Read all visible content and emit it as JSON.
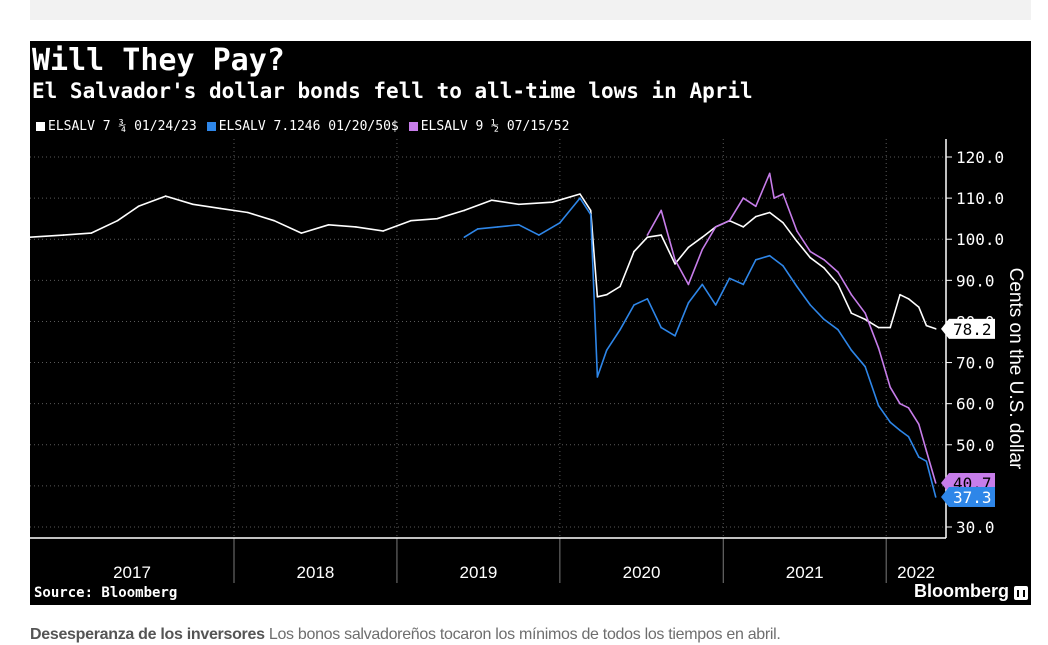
{
  "chart_data": {
    "type": "line",
    "title": "Will They Pay?",
    "subtitle": "El Salvador's dollar bonds fell to all-time lows in April",
    "ylabel": "Cents on the U.S. dollar",
    "ylim": [
      30,
      120
    ],
    "yticks": [
      "30.0",
      "40.0",
      "50.0",
      "60.0",
      "70.0",
      "80.0",
      "90.0",
      "100.0",
      "110.0",
      "120.0"
    ],
    "year_labels": [
      "2017",
      "2018",
      "2019",
      "2020",
      "2021",
      "2022"
    ],
    "x_range": [
      "2016-10-01",
      "2022-05-15"
    ],
    "x_year_boundaries": [
      "2018-01-01",
      "2019-01-01",
      "2020-01-01",
      "2021-01-01",
      "2022-01-01"
    ],
    "grid": "dotted-horizontal-and-vertical",
    "legend_position": "top-left",
    "series": [
      {
        "name": "ELSALV 7 ¾ 01/24/23",
        "color": "#ffffff",
        "last_label": "78.2",
        "label_bg": "#ffffff",
        "label_fg": "#000000",
        "x": [
          "2016-10-01",
          "2016-12-15",
          "2017-02-15",
          "2017-04-15",
          "2017-06-01",
          "2017-08-01",
          "2017-10-01",
          "2017-12-01",
          "2018-02-01",
          "2018-04-01",
          "2018-06-01",
          "2018-08-01",
          "2018-10-01",
          "2018-12-01",
          "2019-02-01",
          "2019-04-01",
          "2019-06-01",
          "2019-08-01",
          "2019-10-01",
          "2019-12-15",
          "2020-02-15",
          "2020-03-10",
          "2020-03-25",
          "2020-04-15",
          "2020-05-15",
          "2020-06-15",
          "2020-07-15",
          "2020-08-15",
          "2020-09-15",
          "2020-10-15",
          "2020-11-15",
          "2020-12-15",
          "2021-01-15",
          "2021-02-15",
          "2021-03-15",
          "2021-04-15",
          "2021-05-15",
          "2021-06-15",
          "2021-07-15",
          "2021-08-15",
          "2021-09-15",
          "2021-10-15",
          "2021-11-15",
          "2021-12-15",
          "2022-01-10",
          "2022-02-01",
          "2022-02-20",
          "2022-03-15",
          "2022-04-01",
          "2022-04-22"
        ],
        "values": [
          100.5,
          101.0,
          101.5,
          104.5,
          108.0,
          110.5,
          108.5,
          107.5,
          106.5,
          104.5,
          101.5,
          103.5,
          103.0,
          102.0,
          104.5,
          105.0,
          107.0,
          109.5,
          108.5,
          109.0,
          111.0,
          107.0,
          86.0,
          86.5,
          88.5,
          97.0,
          100.5,
          101.0,
          94.0,
          98.0,
          100.5,
          103.0,
          104.5,
          103.0,
          105.5,
          106.5,
          104.0,
          99.5,
          95.5,
          93.0,
          89.0,
          82.0,
          80.5,
          78.5,
          78.5,
          86.5,
          85.5,
          83.5,
          79.0,
          78.2
        ]
      },
      {
        "name": "ELSALV 7.1246 01/20/50$",
        "color": "#2e86e8",
        "last_label": "37.3",
        "label_bg": "#2e86e8",
        "label_fg": "#ffffff",
        "x": [
          "2019-06-01",
          "2019-07-01",
          "2019-08-15",
          "2019-10-01",
          "2019-11-15",
          "2020-01-01",
          "2020-02-15",
          "2020-03-10",
          "2020-03-25",
          "2020-04-15",
          "2020-05-15",
          "2020-06-15",
          "2020-07-15",
          "2020-08-15",
          "2020-09-15",
          "2020-10-15",
          "2020-11-15",
          "2020-12-15",
          "2021-01-15",
          "2021-02-15",
          "2021-03-15",
          "2021-04-15",
          "2021-05-15",
          "2021-06-15",
          "2021-07-15",
          "2021-08-15",
          "2021-09-15",
          "2021-10-15",
          "2021-11-15",
          "2021-12-15",
          "2022-01-10",
          "2022-02-01",
          "2022-02-20",
          "2022-03-15",
          "2022-04-01",
          "2022-04-22"
        ],
        "values": [
          100.5,
          102.5,
          103.0,
          103.5,
          101.0,
          104.0,
          110.0,
          106.0,
          66.5,
          73.0,
          78.0,
          84.0,
          85.5,
          78.5,
          76.5,
          84.5,
          89.0,
          84.0,
          90.5,
          89.0,
          95.0,
          96.0,
          93.5,
          88.5,
          84.0,
          80.5,
          78.0,
          73.0,
          69.0,
          59.5,
          55.5,
          53.5,
          52.0,
          47.0,
          46.0,
          37.3
        ]
      },
      {
        "name": "ELSALV 9 ½ 07/15/52",
        "color": "#c77dea",
        "last_label": "40.7",
        "label_bg": "#c77dea",
        "label_fg": "#000000",
        "x": [
          "2020-07-15",
          "2020-08-15",
          "2020-09-15",
          "2020-10-15",
          "2020-11-15",
          "2020-12-15",
          "2021-01-15",
          "2021-02-15",
          "2021-03-15",
          "2021-04-15",
          "2021-04-25",
          "2021-05-15",
          "2021-06-15",
          "2021-07-15",
          "2021-08-15",
          "2021-09-15",
          "2021-10-15",
          "2021-11-15",
          "2021-12-15",
          "2022-01-10",
          "2022-02-01",
          "2022-02-20",
          "2022-03-15",
          "2022-04-01",
          "2022-04-22"
        ],
        "values": [
          101.0,
          107.0,
          95.0,
          89.0,
          97.5,
          103.0,
          104.5,
          110.0,
          108.0,
          116.0,
          110.0,
          111.0,
          102.0,
          97.0,
          95.0,
          92.0,
          86.5,
          82.0,
          73.5,
          64.0,
          60.0,
          59.0,
          55.0,
          48.5,
          40.7
        ]
      }
    ]
  },
  "source": "Source: Bloomberg",
  "brand": "Bloomberg",
  "caption": {
    "bold": "Desesperanza de los inversores",
    "text": "Los bonos salvadoreños tocaron los mínimos de todos los tiempos en abril."
  }
}
